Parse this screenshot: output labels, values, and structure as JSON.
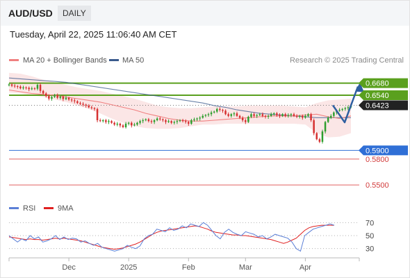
{
  "header": {
    "symbol": "AUD/USD",
    "period": "DAILY"
  },
  "timestamp": "Tuesday, April 22, 2025 11:06:40 AM CET",
  "legend_main": [
    {
      "label": "MA 20 + Bollinger Bands",
      "color": "#f08080"
    },
    {
      "label": "MA 50",
      "color": "#3a5a8c"
    }
  ],
  "credit": "Research © 2025 Trading Central",
  "legend_rsi": [
    {
      "label": "RSI",
      "color": "#5b7fd6"
    },
    {
      "label": "9MA",
      "color": "#e02020"
    }
  ],
  "colors": {
    "up": "#2e9e2e",
    "down": "#d63030",
    "resistance": "#5aa01e",
    "support_blue": "#2f6fd6",
    "support_red": "#e06060",
    "arrow": "#2f5fa0"
  },
  "chart_data": {
    "type": "candlestick",
    "y_range": [
      0.542,
      0.683
    ],
    "levels": [
      {
        "value": 0.668,
        "label": "0.6680",
        "kind": "resistance"
      },
      {
        "value": 0.654,
        "label": "0.6540",
        "kind": "resistance"
      },
      {
        "value": 0.6423,
        "label": "0.6423",
        "kind": "last"
      },
      {
        "value": 0.59,
        "label": "0.5900",
        "kind": "support-blue"
      },
      {
        "value": 0.58,
        "label": "0.5800",
        "kind": "support-red"
      },
      {
        "value": 0.55,
        "label": "0.5500",
        "kind": "support-red"
      }
    ],
    "x_labels": [
      {
        "label": "Dec",
        "index": 21
      },
      {
        "label": "2025",
        "index": 42
      },
      {
        "label": "Feb",
        "index": 63
      },
      {
        "label": "Mar",
        "index": 83
      },
      {
        "label": "Apr",
        "index": 104
      }
    ],
    "closes": [
      0.6665,
      0.665,
      0.6645,
      0.664,
      0.662,
      0.663,
      0.6625,
      0.661,
      0.662,
      0.6615,
      0.666,
      0.659,
      0.656,
      0.653,
      0.65,
      0.652,
      0.654,
      0.651,
      0.6525,
      0.6495,
      0.651,
      0.649,
      0.648,
      0.647,
      0.645,
      0.644,
      0.643,
      0.642,
      0.64,
      0.639,
      0.638,
      0.625,
      0.624,
      0.625,
      0.623,
      0.624,
      0.622,
      0.62,
      0.621,
      0.619,
      0.617,
      0.621,
      0.622,
      0.619,
      0.62,
      0.622,
      0.624,
      0.625,
      0.626,
      0.624,
      0.623,
      0.625,
      0.627,
      0.626,
      0.625,
      0.623,
      0.624,
      0.622,
      0.623,
      0.624,
      0.625,
      0.624,
      0.623,
      0.621,
      0.625,
      0.626,
      0.627,
      0.628,
      0.63,
      0.631,
      0.632,
      0.634,
      0.635,
      0.638,
      0.637,
      0.636,
      0.632,
      0.63,
      0.632,
      0.633,
      0.63,
      0.628,
      0.625,
      0.623,
      0.629,
      0.632,
      0.63,
      0.631,
      0.632,
      0.63,
      0.629,
      0.63,
      0.632,
      0.633,
      0.631,
      0.63,
      0.632,
      0.63,
      0.631,
      0.632,
      0.63,
      0.629,
      0.63,
      0.628,
      0.63,
      0.632,
      0.625,
      0.61,
      0.603,
      0.6,
      0.612,
      0.623,
      0.628,
      0.63,
      0.634,
      0.636,
      0.637,
      0.638,
      0.639,
      0.64,
      0.6423
    ],
    "ma50": [
      0.674,
      0.673,
      0.672,
      0.671,
      0.67,
      0.669,
      0.667,
      0.665,
      0.663,
      0.661,
      0.659,
      0.657,
      0.655,
      0.653,
      0.651,
      0.649,
      0.647,
      0.645,
      0.642,
      0.64,
      0.637,
      0.635,
      0.633,
      0.632,
      0.631,
      0.63,
      0.629,
      0.628,
      0.628,
      0.628,
      0.628
    ],
    "ma20": [
      0.66,
      0.658,
      0.656,
      0.655,
      0.654,
      0.652,
      0.65,
      0.648,
      0.646,
      0.643,
      0.64,
      0.637,
      0.633,
      0.63,
      0.627,
      0.625,
      0.624,
      0.624,
      0.625,
      0.626,
      0.627,
      0.628,
      0.629,
      0.63,
      0.63,
      0.63,
      0.631,
      0.632,
      0.629,
      0.627,
      0.63
    ],
    "bb_upper": [
      0.68,
      0.679,
      0.676,
      0.672,
      0.669,
      0.666,
      0.663,
      0.661,
      0.659,
      0.656,
      0.653,
      0.65,
      0.646,
      0.642,
      0.64,
      0.639,
      0.639,
      0.64,
      0.641,
      0.641,
      0.641,
      0.642,
      0.642,
      0.642,
      0.642,
      0.641,
      0.64,
      0.645,
      0.648,
      0.649,
      0.65
    ],
    "bb_lower": [
      0.657,
      0.656,
      0.654,
      0.652,
      0.649,
      0.646,
      0.642,
      0.638,
      0.633,
      0.627,
      0.622,
      0.618,
      0.616,
      0.615,
      0.615,
      0.616,
      0.618,
      0.62,
      0.62,
      0.621,
      0.621,
      0.621,
      0.621,
      0.621,
      0.621,
      0.621,
      0.62,
      0.61,
      0.605,
      0.606,
      0.61
    ],
    "forecast": [
      0.6423,
      0.6225,
      0.664
    ],
    "rsi": {
      "levels": [
        70,
        50,
        30
      ],
      "range": [
        20,
        80
      ],
      "rsi": [
        50,
        45,
        40,
        45,
        42,
        50,
        45,
        48,
        40,
        42,
        45,
        50,
        44,
        48,
        44,
        46,
        45,
        40,
        42,
        38,
        35,
        38,
        32,
        30,
        28,
        26,
        28,
        30,
        35,
        32,
        30,
        34,
        45,
        50,
        52,
        60,
        58,
        56,
        62,
        58,
        60,
        65,
        62,
        68,
        66,
        64,
        70,
        66,
        58,
        50,
        45,
        55,
        60,
        55,
        52,
        50,
        56,
        54,
        52,
        48,
        50,
        45,
        48,
        52,
        50,
        48,
        46,
        40,
        30,
        26,
        50,
        55,
        60,
        62,
        64,
        66,
        68,
        66
      ],
      "ma9": [
        48,
        47,
        46,
        45,
        44,
        45,
        44,
        44,
        43,
        44,
        45,
        46,
        45,
        46,
        45,
        44,
        43,
        42,
        40,
        38,
        36,
        34,
        32,
        31,
        30,
        29,
        30,
        31,
        33,
        35,
        37,
        40,
        44,
        48,
        52,
        55,
        57,
        58,
        59,
        60,
        61,
        62,
        63,
        64,
        65,
        64,
        62,
        60,
        57,
        55,
        54,
        53,
        52,
        51,
        51,
        50,
        50,
        49,
        48,
        47,
        46,
        45,
        44,
        42,
        40,
        38,
        40,
        43,
        46,
        52,
        58,
        62,
        64,
        65,
        66,
        66,
        66,
        66
      ]
    }
  }
}
